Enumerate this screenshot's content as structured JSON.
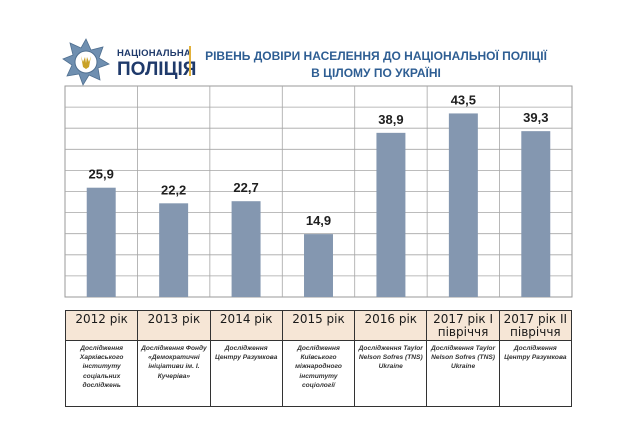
{
  "header": {
    "brand_line1": "НАЦІОНАЛЬНА",
    "brand_line2": "ПОЛІЦІЯ",
    "title_line1": "РІВЕНЬ ДОВІРИ НАСЕЛЕННЯ ДО НАЦІОНАЛЬНОЇ ПОЛІЦІЇ",
    "title_line2": "В ЦІЛОМУ ПО УКРАЇНІ"
  },
  "chart_data": {
    "type": "bar",
    "categories": [
      "2012 рік",
      "2013 рік",
      "2014 рік",
      "2015 рік",
      "2016 рік",
      "2017 рік І півріччя",
      "2017 рік ІІ півріччя"
    ],
    "values": [
      25.9,
      22.2,
      22.7,
      14.9,
      38.9,
      43.5,
      39.3
    ],
    "value_labels": [
      "25,9",
      "22,2",
      "22,7",
      "14,9",
      "38,9",
      "43,5",
      "39,3"
    ],
    "sources": [
      "Дослідження Харківського інституту соціальних досліджень",
      "Дослідження Фонду «Демократичні ініціативи ім. І. Кучеріва»",
      "Дослідження Центру Разумкова",
      "Дослідження Київського міжнародного інституту соціології",
      "Дослідження Taylor Nelson Sofres (TNS) Ukraine",
      "Дослідження Taylor Nelson Sofres (TNS) Ukraine",
      "Дослідження Центру Разумкова"
    ],
    "ylim": [
      0,
      50
    ],
    "grid": true,
    "legend": "none",
    "bar_color": "#8497b0",
    "label_color": "#1f1f1f"
  }
}
